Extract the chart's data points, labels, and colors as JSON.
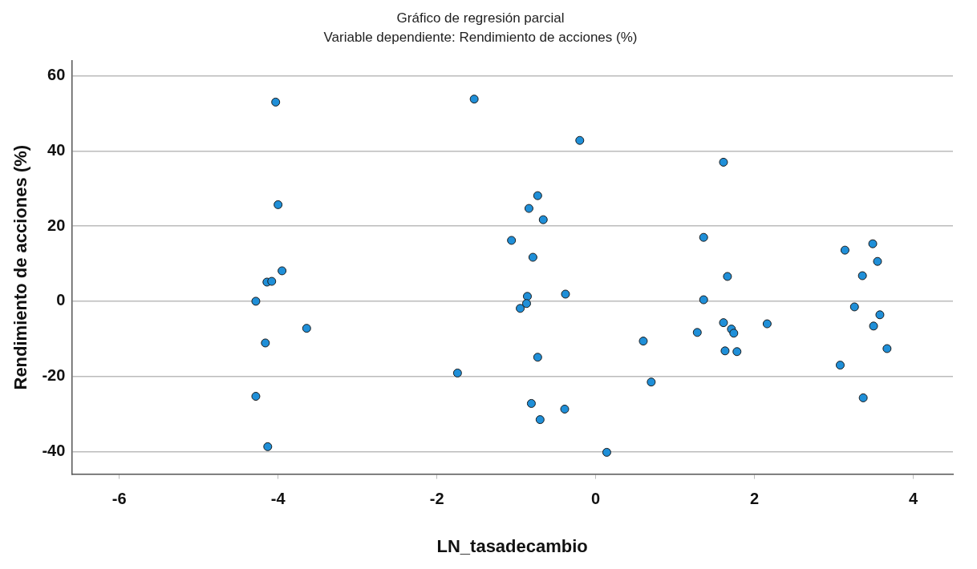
{
  "chart_data": {
    "type": "scatter",
    "title": "Gráfico de regresión parcial",
    "subtitle": "Variable dependiente: Rendimiento de acciones (%)",
    "xlabel": "LN_tasadecambio",
    "ylabel": "Rendimiento de acciones (%)",
    "x": [
      -4.03,
      -4.0,
      -3.95,
      -4.14,
      -4.08,
      -4.28,
      -3.64,
      -4.16,
      -4.28,
      -4.13,
      -1.53,
      -0.2,
      -0.73,
      -0.84,
      -0.66,
      -1.06,
      -0.79,
      -0.86,
      -0.87,
      -0.95,
      -0.38,
      -0.73,
      -1.74,
      -0.81,
      -0.7,
      -0.39,
      0.14,
      0.6,
      0.7,
      1.36,
      1.36,
      1.28,
      1.66,
      1.61,
      1.63,
      1.71,
      1.74,
      1.78,
      2.16,
      1.61,
      3.14,
      3.49,
      3.55,
      3.36,
      3.26,
      3.58,
      3.5,
      3.67,
      3.08,
      3.37
    ],
    "values": [
      53.0,
      25.7,
      8.1,
      5.1,
      5.3,
      0.0,
      -7.2,
      -11.1,
      -25.3,
      -38.7,
      53.8,
      42.8,
      28.1,
      24.7,
      21.7,
      16.2,
      11.7,
      1.3,
      -0.6,
      -1.9,
      1.9,
      -14.9,
      -19.1,
      -27.2,
      -31.5,
      -28.7,
      -40.2,
      -10.6,
      -21.5,
      17.0,
      0.4,
      -8.3,
      6.6,
      -5.7,
      -13.2,
      -7.4,
      -8.5,
      -13.4,
      -6.0,
      37.0,
      13.6,
      15.3,
      10.6,
      6.8,
      -1.5,
      -3.6,
      -6.6,
      -12.6,
      -17.0,
      -25.7
    ],
    "color": "#1f8fd8",
    "marker": "circle",
    "grid": "y",
    "xlim": [
      -6.6,
      4.5
    ],
    "xticks": [
      -6,
      -4,
      -2,
      0,
      2,
      4
    ],
    "ylim": [
      -46,
      64
    ],
    "yticks": [
      -40,
      -20,
      0,
      20,
      40,
      60
    ]
  }
}
